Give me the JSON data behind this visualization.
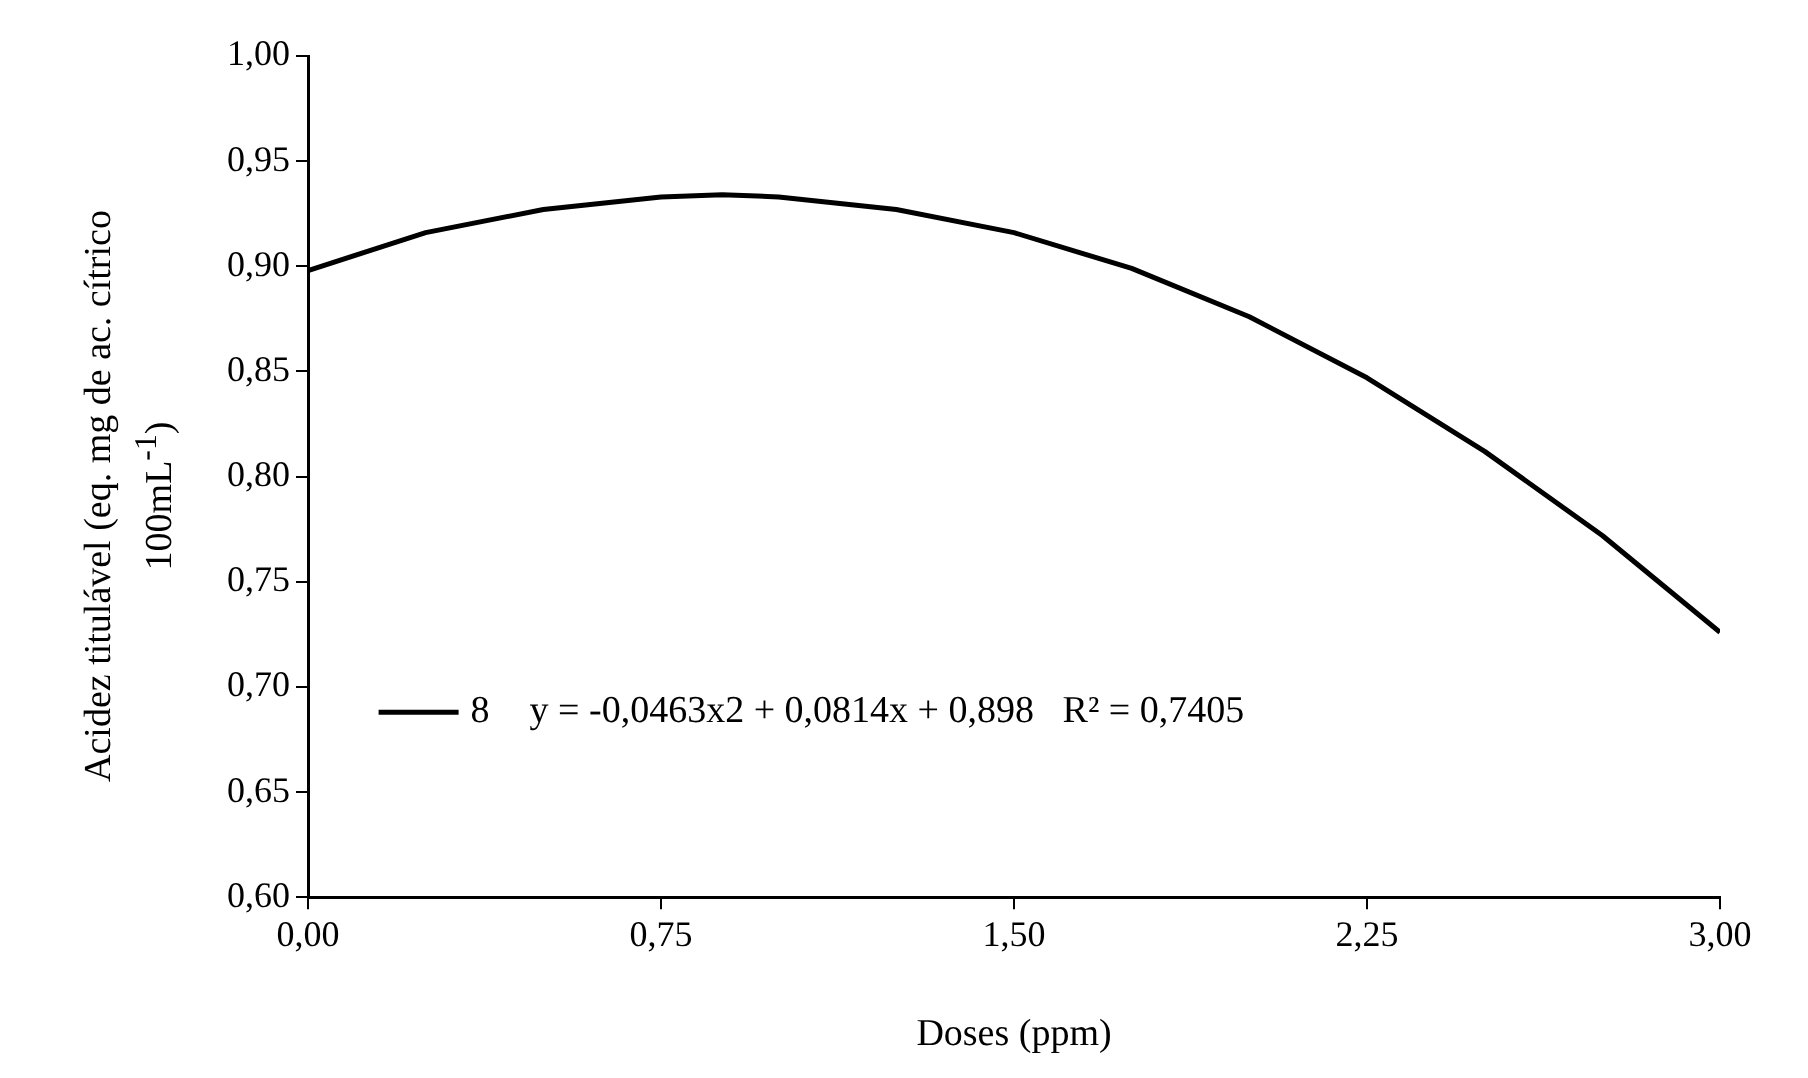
{
  "chart_data": {
    "type": "line",
    "xlabel": "Doses (ppm)",
    "ylabel": "Acidez titulável (eq. mg de ac. cítrico 100mL$^{-1}$)",
    "x": [
      0,
      0.25,
      0.5,
      0.75,
      0.88,
      1,
      1.25,
      1.5,
      1.75,
      2,
      2.25,
      2.5,
      2.75,
      3
    ],
    "series": [
      {
        "name": "8",
        "color": "#000000",
        "values": [
          0.898,
          0.916,
          0.927,
          0.933,
          0.934,
          0.933,
          0.927,
          0.916,
          0.899,
          0.876,
          0.847,
          0.812,
          0.772,
          0.726
        ]
      }
    ],
    "xlim": [
      0,
      3
    ],
    "xticks": [
      {
        "value": 0,
        "label": "0,00"
      },
      {
        "value": 0.75,
        "label": "0,75"
      },
      {
        "value": 1.5,
        "label": "1,50"
      },
      {
        "value": 2.25,
        "label": "2,25"
      },
      {
        "value": 3,
        "label": "3,00"
      }
    ],
    "ylim": [
      0.6,
      1
    ],
    "yticks": [
      {
        "value": 0.6,
        "label": "0,60"
      },
      {
        "value": 0.65,
        "label": "0,65"
      },
      {
        "value": 0.7,
        "label": "0,70"
      },
      {
        "value": 0.75,
        "label": "0,75"
      },
      {
        "value": 0.8,
        "label": "0,80"
      },
      {
        "value": 0.85,
        "label": "0,85"
      },
      {
        "value": 0.9,
        "label": "0,90"
      },
      {
        "value": 0.95,
        "label": "0,95"
      },
      {
        "value": 1,
        "label": "1,00"
      }
    ],
    "annotations": [
      "y = -0,0463x2 + 0,0814x + 0,898   R² = 0,7405"
    ],
    "legend": "bottom left",
    "grid": false,
    "marker": "none",
    "line_style": "solid"
  }
}
